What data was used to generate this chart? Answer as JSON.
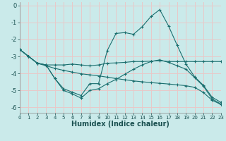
{
  "xlabel": "Humidex (Indice chaleur)",
  "background_color": "#caeaea",
  "grid_color": "#e8c8c8",
  "line_color": "#1a6e6e",
  "xlim": [
    0,
    23
  ],
  "ylim": [
    -6.3,
    0.2
  ],
  "yticks": [
    0,
    -1,
    -2,
    -3,
    -4,
    -5,
    -6
  ],
  "xticks": [
    0,
    1,
    2,
    3,
    4,
    5,
    6,
    7,
    8,
    9,
    10,
    11,
    12,
    13,
    14,
    15,
    16,
    17,
    18,
    19,
    20,
    21,
    22,
    23
  ],
  "line1_x": [
    0,
    1,
    2,
    3,
    4,
    5,
    6,
    7,
    8,
    9,
    10,
    11,
    12,
    13,
    14,
    15,
    16,
    17,
    18,
    19,
    20,
    21,
    22,
    23
  ],
  "line1_y": [
    -2.6,
    -3.0,
    -3.4,
    -3.5,
    -3.5,
    -3.5,
    -3.45,
    -3.5,
    -3.55,
    -3.5,
    -3.4,
    -3.38,
    -3.35,
    -3.3,
    -3.3,
    -3.28,
    -3.25,
    -3.3,
    -3.3,
    -3.3,
    -3.3,
    -3.3,
    -3.3,
    -3.3
  ],
  "line2_x": [
    0,
    1,
    2,
    3,
    4,
    5,
    6,
    7,
    8,
    9,
    10,
    11,
    12,
    13,
    14,
    15,
    16,
    17,
    18,
    19,
    20,
    21,
    22,
    23
  ],
  "line2_y": [
    -2.6,
    -3.0,
    -3.4,
    -3.5,
    -4.3,
    -4.9,
    -5.1,
    -5.3,
    -4.6,
    -4.6,
    -2.65,
    -1.65,
    -1.6,
    -1.7,
    -1.25,
    -0.65,
    -0.25,
    -1.2,
    -2.35,
    -3.45,
    -4.2,
    -4.7,
    -5.4,
    -5.7
  ],
  "line3_x": [
    0,
    1,
    2,
    3,
    4,
    5,
    6,
    7,
    8,
    9,
    10,
    11,
    12,
    13,
    14,
    15,
    16,
    17,
    18,
    19,
    20,
    21,
    22,
    23
  ],
  "line3_y": [
    -2.6,
    -3.0,
    -3.4,
    -3.5,
    -4.3,
    -5.0,
    -5.2,
    -5.45,
    -5.0,
    -4.9,
    -4.6,
    -4.35,
    -4.05,
    -3.75,
    -3.5,
    -3.3,
    -3.2,
    -3.35,
    -3.55,
    -3.75,
    -4.25,
    -4.75,
    -5.5,
    -5.8
  ],
  "line4_x": [
    0,
    1,
    2,
    3,
    4,
    5,
    6,
    7,
    8,
    9,
    10,
    11,
    12,
    13,
    14,
    15,
    16,
    17,
    18,
    19,
    20,
    21,
    22,
    23
  ],
  "line4_y": [
    -2.6,
    -3.0,
    -3.4,
    -3.55,
    -3.7,
    -3.82,
    -3.92,
    -4.02,
    -4.08,
    -4.14,
    -4.22,
    -4.3,
    -4.37,
    -4.44,
    -4.49,
    -4.54,
    -4.58,
    -4.62,
    -4.67,
    -4.72,
    -4.82,
    -5.12,
    -5.58,
    -5.82
  ]
}
